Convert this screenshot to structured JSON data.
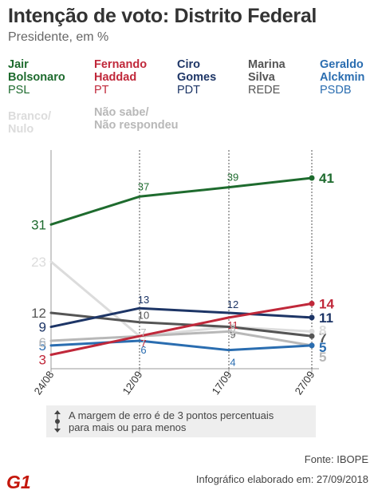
{
  "title": "Intenção de voto: Distrito Federal",
  "subtitle": "Presidente, em %",
  "legend": [
    {
      "name": "Jair\nBolsonaro",
      "party": "PSL",
      "color": "#1e6b2e"
    },
    {
      "name": "Fernando\nHaddad",
      "party": "PT",
      "color": "#c0283a"
    },
    {
      "name": "Ciro\nGomes",
      "party": "PDT",
      "color": "#1d3566"
    },
    {
      "name": "Marina\nSilva",
      "party": "REDE",
      "color": "#555555"
    },
    {
      "name": "Geraldo\nAlckmin",
      "party": "PSDB",
      "color": "#2a6db0"
    },
    {
      "name": "Branco/\nNulo",
      "party": "",
      "color": "#dcdcdc"
    },
    {
      "name": "Não sabe/\nNão respondeu",
      "party": "",
      "color": "#b8b8b8"
    }
  ],
  "chart_data": {
    "type": "line",
    "x": [
      "24/08",
      "12/09",
      "17/09",
      "27/09"
    ],
    "series": [
      {
        "name": "Jair Bolsonaro",
        "color": "#1e6b2e",
        "values": [
          31,
          37,
          39,
          41
        ]
      },
      {
        "name": "Fernando Haddad",
        "color": "#c0283a",
        "values": [
          3,
          7,
          11,
          14
        ]
      },
      {
        "name": "Ciro Gomes",
        "color": "#1d3566",
        "values": [
          9,
          13,
          12,
          11
        ]
      },
      {
        "name": "Marina Silva",
        "color": "#555555",
        "values": [
          12,
          10,
          9,
          7
        ]
      },
      {
        "name": "Geraldo Alckmin",
        "color": "#2a6db0",
        "values": [
          5,
          6,
          4,
          5
        ]
      },
      {
        "name": "Branco/Nulo",
        "color": "#dcdcdc",
        "values": [
          23,
          7,
          9,
          8
        ]
      },
      {
        "name": "Não sabe/Não respondeu",
        "color": "#b8b8b8",
        "values": [
          6,
          7,
          8,
          5
        ]
      }
    ],
    "ylim": [
      0,
      47
    ]
  },
  "note": "A margem de erro é de 3 pontos percentuais\npara mais ou para menos",
  "source": "Fonte: IBOPE",
  "credit": "Infográfico elaborado em: 27/09/2018",
  "logo_text": "G1",
  "logo_color": "#c4170c"
}
